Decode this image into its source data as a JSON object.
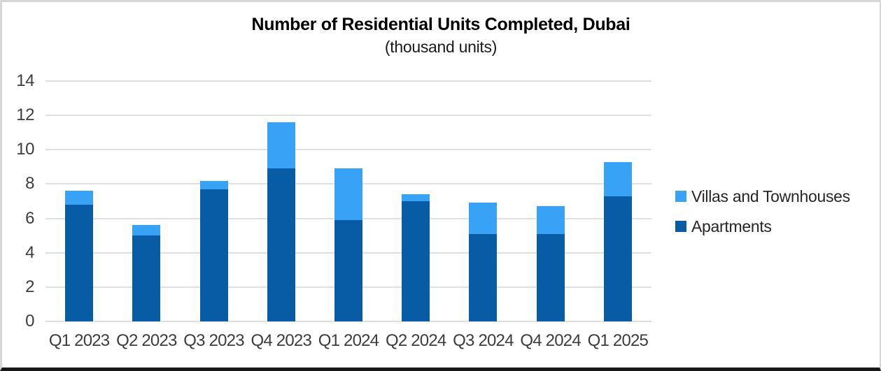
{
  "title": "Number of Residential Units Completed, Dubai",
  "subtitle": "(thousand units)",
  "colors": {
    "villas": "#38A2F7",
    "apartments": "#075CA5",
    "gridline": "#e0e0e0",
    "axis_text": "#3d3d3d",
    "title_text": "#000000"
  },
  "chart_data": {
    "type": "bar",
    "stacked": true,
    "title": "Number of Residential Units Completed, Dubai",
    "subtitle": "(thousand units)",
    "categories": [
      "Q1 2023",
      "Q2 2023",
      "Q3 2023",
      "Q4 2023",
      "Q1 2024",
      "Q2 2024",
      "Q3 2024",
      "Q4 2024",
      "Q1 2025"
    ],
    "series": [
      {
        "name": "Villas and Townhouses",
        "color": "#38A2F7",
        "values": [
          0.8,
          0.6,
          0.5,
          2.7,
          3.0,
          0.4,
          1.8,
          1.6,
          2.0
        ]
      },
      {
        "name": "Apartments",
        "color": "#075CA5",
        "values": [
          6.8,
          5.0,
          7.7,
          8.9,
          5.9,
          7.0,
          5.1,
          5.1,
          7.3
        ]
      }
    ],
    "totals": [
      7.6,
      5.6,
      8.2,
      11.6,
      8.9,
      7.4,
      6.9,
      6.7,
      9.3
    ],
    "xlabel": "",
    "ylabel": "",
    "y_ticks": [
      0,
      2,
      4,
      6,
      8,
      10,
      12,
      14
    ],
    "ylim": [
      0,
      14
    ],
    "grid": true,
    "legend_position": "right",
    "legend_order": [
      "Villas and Townhouses",
      "Apartments"
    ]
  }
}
